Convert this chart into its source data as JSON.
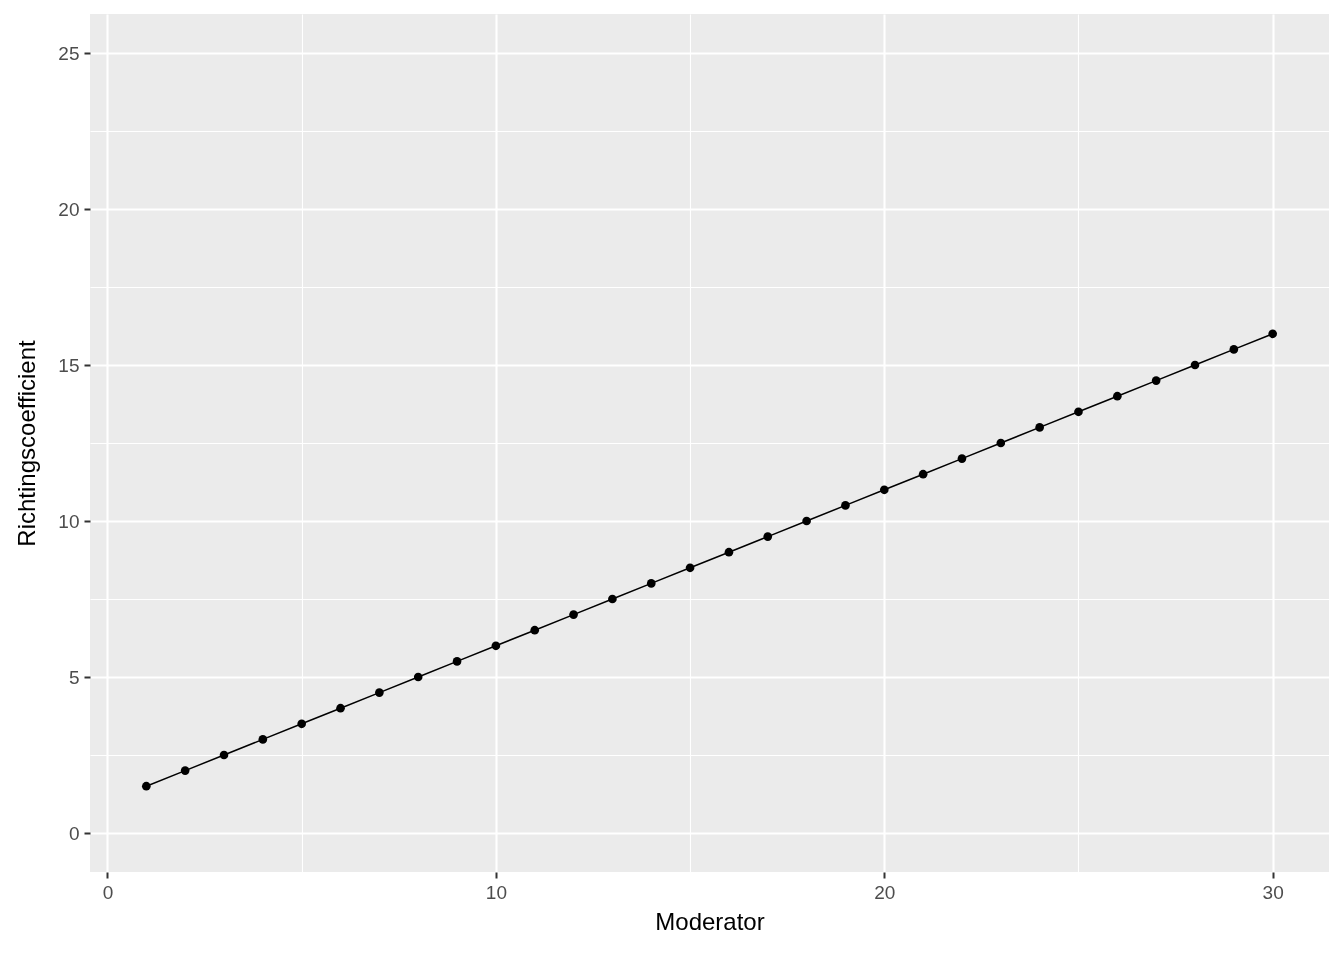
{
  "chart_data": {
    "type": "line",
    "xlabel": "Moderator",
    "ylabel": "Richtingscoefficient",
    "x": [
      1,
      2,
      3,
      4,
      5,
      6,
      7,
      8,
      9,
      10,
      11,
      12,
      13,
      14,
      15,
      16,
      17,
      18,
      19,
      20,
      21,
      22,
      23,
      24,
      25,
      26,
      27,
      28,
      29,
      30
    ],
    "series": [
      {
        "color": "#000000",
        "values": [
          1.5,
          2,
          2.5,
          3,
          3.5,
          4,
          4.5,
          5,
          5.5,
          6,
          6.5,
          7,
          7.5,
          8,
          8.5,
          9,
          9.5,
          10,
          10.5,
          11,
          11.5,
          12,
          12.5,
          13,
          13.5,
          14,
          14.5,
          15,
          15.5,
          16
        ]
      }
    ],
    "xlim": [
      -0.45,
      31.45
    ],
    "ylim": [
      -1.25,
      26.25
    ],
    "xticks": [
      0,
      {
        "value": 5,
        "label": null
      },
      10,
      {
        "value": 15,
        "label": null
      },
      20,
      {
        "value": 25,
        "label": null
      },
      30
    ],
    "yticks": [
      0,
      {
        "value": 2.5,
        "label": null
      },
      5,
      {
        "value": 7.5,
        "label": null
      },
      10,
      {
        "value": 12.5,
        "label": null
      },
      15,
      {
        "value": 17.5,
        "label": null
      },
      20,
      {
        "value": 22.5,
        "label": null
      },
      25
    ],
    "grid": true,
    "marker": "circle",
    "line_style": "solid"
  }
}
